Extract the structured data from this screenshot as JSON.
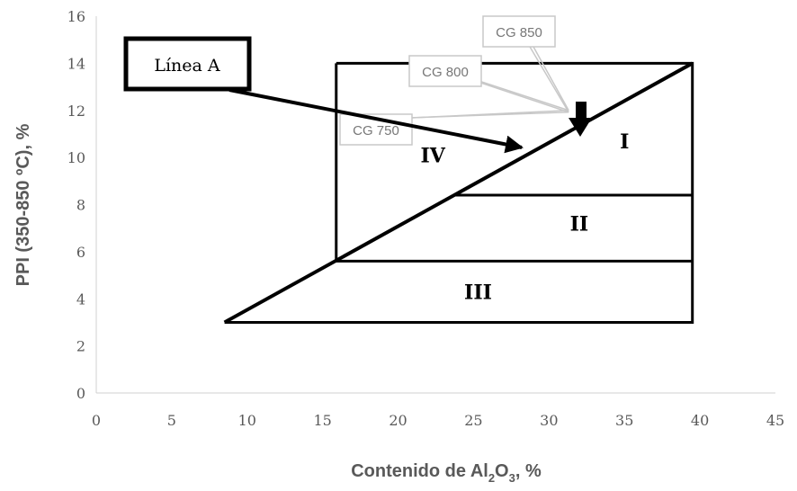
{
  "chart_data": {
    "type": "scatter",
    "title": "",
    "xlabel_main": "Contenido de Al",
    "xlabel_sub1": "2",
    "xlabel_mid": "O",
    "xlabel_sub2": "3",
    "xlabel_end": ", %",
    "ylabel": "PPI (350-850 ºC), %",
    "xlim": [
      0,
      45
    ],
    "ylim": [
      0,
      16
    ],
    "xticks": [
      "0",
      "5",
      "10",
      "15",
      "20",
      "25",
      "30",
      "35",
      "40",
      "45"
    ],
    "yticks": [
      "0",
      "2",
      "4",
      "6",
      "8",
      "10",
      "12",
      "14",
      "16"
    ],
    "grid": false,
    "lines": {
      "boundary_rect": [
        [
          15.9,
          14
        ],
        [
          39.5,
          14
        ],
        [
          39.5,
          3
        ],
        [
          8.5,
          3
        ]
      ],
      "rect_left": [
        [
          15.9,
          14
        ],
        [
          15.9,
          5.6
        ]
      ],
      "diagonal_linea_a": [
        [
          8.5,
          3
        ],
        [
          39.5,
          14
        ]
      ],
      "line_II_IV": [
        [
          23.8,
          8.4
        ],
        [
          39.5,
          8.4
        ]
      ],
      "line_III_II": [
        [
          15.9,
          5.6
        ],
        [
          39.5,
          5.6
        ]
      ]
    },
    "regions": [
      {
        "label": "I",
        "x": 35,
        "y": 10.7
      },
      {
        "label": "II",
        "x": 32,
        "y": 7.2
      },
      {
        "label": "III",
        "x": 25.3,
        "y": 4.3
      },
      {
        "label": "IV",
        "x": 22.3,
        "y": 10.1
      }
    ],
    "callouts": [
      {
        "label": "CG 850",
        "anchor": [
          31.3,
          12
        ]
      },
      {
        "label": "CG 800",
        "anchor": [
          31.3,
          12
        ]
      },
      {
        "label": "CG 750",
        "anchor": [
          31.3,
          12
        ]
      }
    ],
    "marker": {
      "type": "down-arrow",
      "x": 31.5,
      "y": 12
    },
    "annotation": {
      "label": "Línea A",
      "points_to": [
        29,
        10.5
      ]
    }
  }
}
